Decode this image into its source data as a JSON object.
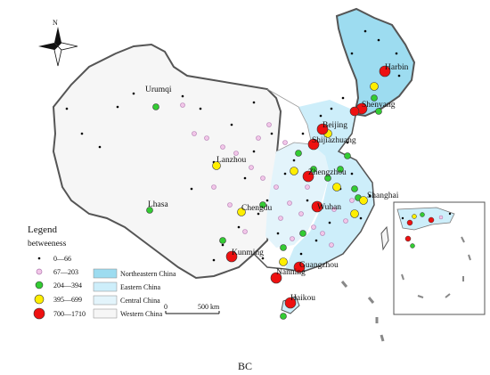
{
  "north_label": "N",
  "cities": [
    {
      "name": "Harbin"
    },
    {
      "name": "Shenyang"
    },
    {
      "name": "Beijing"
    },
    {
      "name": "Shijiazhuang"
    },
    {
      "name": "Urumqi"
    },
    {
      "name": "Lanzhou"
    },
    {
      "name": "Zhengzhou"
    },
    {
      "name": "Lhasa"
    },
    {
      "name": "Chengdu"
    },
    {
      "name": "Wuhan"
    },
    {
      "name": "Shanghai"
    },
    {
      "name": "Kunming"
    },
    {
      "name": "Nanning"
    },
    {
      "name": "Guangzhou"
    },
    {
      "name": "Haikou"
    }
  ],
  "legend": {
    "title": "Legend",
    "subtitle": "betweeness",
    "classes": [
      {
        "label": "0—66",
        "color": "#000000",
        "size": "tiny"
      },
      {
        "label": "67—203",
        "color": "#f2c6e8",
        "size": "small"
      },
      {
        "label": "204—394",
        "color": "#33cc33",
        "size": "medium"
      },
      {
        "label": "395—699",
        "color": "#ffee00",
        "size": "large"
      },
      {
        "label": "700—1710",
        "color": "#ee1111",
        "size": "xlarge"
      }
    ],
    "regions": [
      {
        "label": "Northeastern China",
        "color": "#9ddcf0"
      },
      {
        "label": "Eastern China",
        "color": "#cdeefa"
      },
      {
        "label": "Central China",
        "color": "#e3f4fb"
      },
      {
        "label": "Western China",
        "color": "#f6f6f6"
      }
    ]
  },
  "scale_bar": {
    "start": "0",
    "end": "500 km"
  },
  "caption": "BC"
}
